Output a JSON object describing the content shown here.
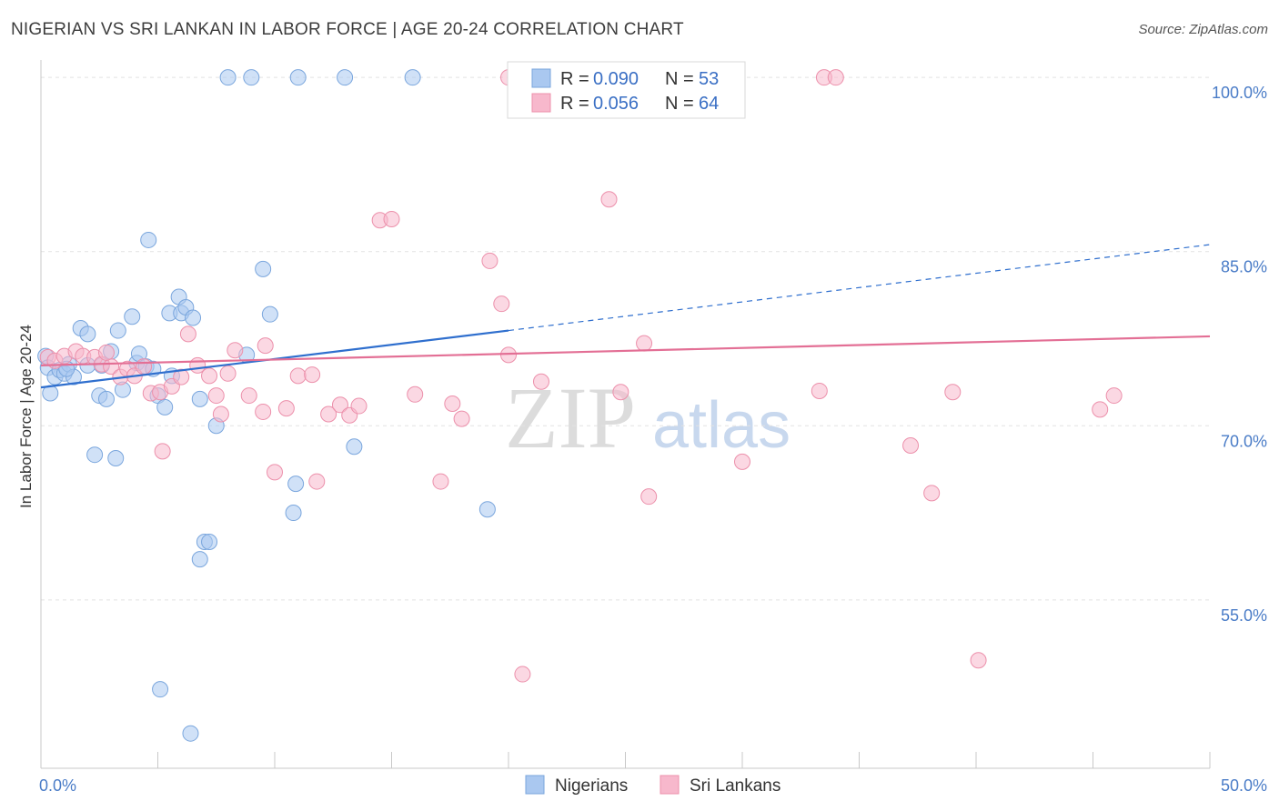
{
  "title": "NIGERIAN VS SRI LANKAN IN LABOR FORCE | AGE 20-24 CORRELATION CHART",
  "source": "Source: ZipAtlas.com",
  "watermark": {
    "zip": "ZIP",
    "atlas": "atlas"
  },
  "chart_data": {
    "type": "scatter",
    "ylabel": "In Labor Force | Age 20-24",
    "xlim": [
      0,
      50
    ],
    "ylim": [
      40.5,
      101.5
    ],
    "x_tick_labels": [
      {
        "value": 0,
        "label": "0.0%"
      },
      {
        "value": 50,
        "label": "50.0%"
      }
    ],
    "y_tick_labels": [
      {
        "value": 100,
        "label": "100.0%"
      },
      {
        "value": 85,
        "label": "85.0%"
      },
      {
        "value": 70,
        "label": "70.0%"
      },
      {
        "value": 55,
        "label": "55.0%"
      }
    ],
    "grid": true,
    "stats_legend": [
      {
        "r_label": "R =",
        "r_value": "0.090",
        "n_label": "N =",
        "n_value": "53",
        "color": "#aac8f0"
      },
      {
        "r_label": "R =",
        "r_value": "0.056",
        "n_label": "N =",
        "n_value": "64",
        "color": "#f7b8cc"
      }
    ],
    "series": [
      {
        "name": "Nigerians",
        "color": "#aac8f0",
        "stroke": "#7aa6dd",
        "trend": {
          "x0": 0,
          "y0": 73.3,
          "x1": 20,
          "y1": 78.2,
          "dash_x1": 50,
          "dash_y1": 85.6,
          "color": "#2f6fce"
        },
        "points": [
          [
            0.2,
            76.0
          ],
          [
            0.3,
            75.0
          ],
          [
            0.4,
            72.8
          ],
          [
            0.6,
            74.2
          ],
          [
            0.8,
            74.8
          ],
          [
            1.0,
            74.5
          ],
          [
            1.2,
            75.3
          ],
          [
            1.4,
            74.2
          ],
          [
            1.7,
            78.4
          ],
          [
            2.0,
            77.9
          ],
          [
            2.3,
            67.5
          ],
          [
            2.5,
            72.6
          ],
          [
            2.6,
            75.2
          ],
          [
            2.8,
            72.3
          ],
          [
            3.0,
            76.4
          ],
          [
            3.2,
            67.2
          ],
          [
            3.3,
            78.2
          ],
          [
            3.5,
            73.1
          ],
          [
            3.9,
            79.4
          ],
          [
            4.1,
            75.4
          ],
          [
            4.2,
            76.2
          ],
          [
            4.5,
            75.1
          ],
          [
            4.6,
            86.0
          ],
          [
            4.8,
            74.9
          ],
          [
            5.0,
            72.6
          ],
          [
            5.3,
            71.6
          ],
          [
            5.5,
            79.7
          ],
          [
            5.6,
            74.3
          ],
          [
            5.9,
            81.1
          ],
          [
            6.0,
            79.7
          ],
          [
            6.2,
            80.2
          ],
          [
            6.5,
            79.3
          ],
          [
            6.8,
            72.3
          ],
          [
            7.0,
            60.0
          ],
          [
            7.2,
            60.0
          ],
          [
            7.5,
            70.0
          ],
          [
            8.0,
            100.0
          ],
          [
            8.8,
            76.1
          ],
          [
            9.0,
            100.0
          ],
          [
            9.5,
            83.5
          ],
          [
            9.8,
            79.6
          ],
          [
            10.9,
            65.0
          ],
          [
            10.8,
            62.5
          ],
          [
            11.0,
            100.0
          ],
          [
            13.0,
            100.0
          ],
          [
            13.4,
            68.2
          ],
          [
            15.9,
            100.0
          ],
          [
            19.1,
            62.8
          ],
          [
            5.1,
            47.3
          ],
          [
            6.4,
            43.5
          ],
          [
            6.8,
            58.5
          ],
          [
            2.0,
            75.2
          ],
          [
            1.1,
            74.9
          ]
        ]
      },
      {
        "name": "Sri Lankans",
        "color": "#f7b8cc",
        "stroke": "#ec90ab",
        "trend": {
          "x0": 0,
          "y0": 75.2,
          "x1": 50,
          "y1": 77.7,
          "color": "#e36f95"
        },
        "points": [
          [
            0.3,
            75.9
          ],
          [
            0.6,
            75.6
          ],
          [
            1.0,
            76.0
          ],
          [
            1.5,
            76.4
          ],
          [
            1.8,
            76.0
          ],
          [
            2.3,
            75.9
          ],
          [
            2.6,
            75.3
          ],
          [
            3.0,
            75.1
          ],
          [
            3.4,
            74.2
          ],
          [
            3.7,
            74.9
          ],
          [
            4.0,
            74.3
          ],
          [
            4.4,
            75.1
          ],
          [
            4.7,
            72.8
          ],
          [
            5.1,
            72.9
          ],
          [
            5.2,
            67.8
          ],
          [
            5.6,
            73.4
          ],
          [
            6.0,
            74.2
          ],
          [
            6.3,
            77.9
          ],
          [
            6.7,
            75.2
          ],
          [
            7.2,
            74.3
          ],
          [
            7.5,
            72.6
          ],
          [
            7.7,
            71.0
          ],
          [
            8.0,
            74.5
          ],
          [
            8.3,
            76.5
          ],
          [
            8.9,
            72.6
          ],
          [
            9.5,
            71.2
          ],
          [
            9.6,
            76.9
          ],
          [
            10.0,
            66.0
          ],
          [
            10.5,
            71.5
          ],
          [
            11.0,
            74.3
          ],
          [
            11.6,
            74.4
          ],
          [
            11.8,
            65.2
          ],
          [
            12.3,
            71.0
          ],
          [
            12.8,
            71.8
          ],
          [
            13.2,
            70.9
          ],
          [
            13.6,
            71.7
          ],
          [
            14.5,
            87.7
          ],
          [
            15.0,
            87.8
          ],
          [
            16.0,
            72.7
          ],
          [
            17.1,
            65.2
          ],
          [
            17.6,
            71.9
          ],
          [
            18.0,
            70.6
          ],
          [
            19.2,
            84.2
          ],
          [
            19.7,
            80.5
          ],
          [
            20.0,
            76.1
          ],
          [
            20.0,
            100.0
          ],
          [
            20.6,
            48.6
          ],
          [
            21.4,
            73.8
          ],
          [
            22.0,
            100.0
          ],
          [
            24.3,
            89.5
          ],
          [
            24.8,
            72.9
          ],
          [
            25.8,
            77.1
          ],
          [
            26.0,
            63.9
          ],
          [
            30.0,
            66.9
          ],
          [
            33.3,
            73.0
          ],
          [
            33.5,
            100.0
          ],
          [
            34.0,
            100.0
          ],
          [
            37.2,
            68.3
          ],
          [
            38.1,
            64.2
          ],
          [
            39.0,
            72.9
          ],
          [
            40.1,
            49.8
          ],
          [
            45.3,
            71.4
          ],
          [
            45.9,
            72.6
          ],
          [
            2.8,
            76.3
          ]
        ]
      }
    ]
  }
}
